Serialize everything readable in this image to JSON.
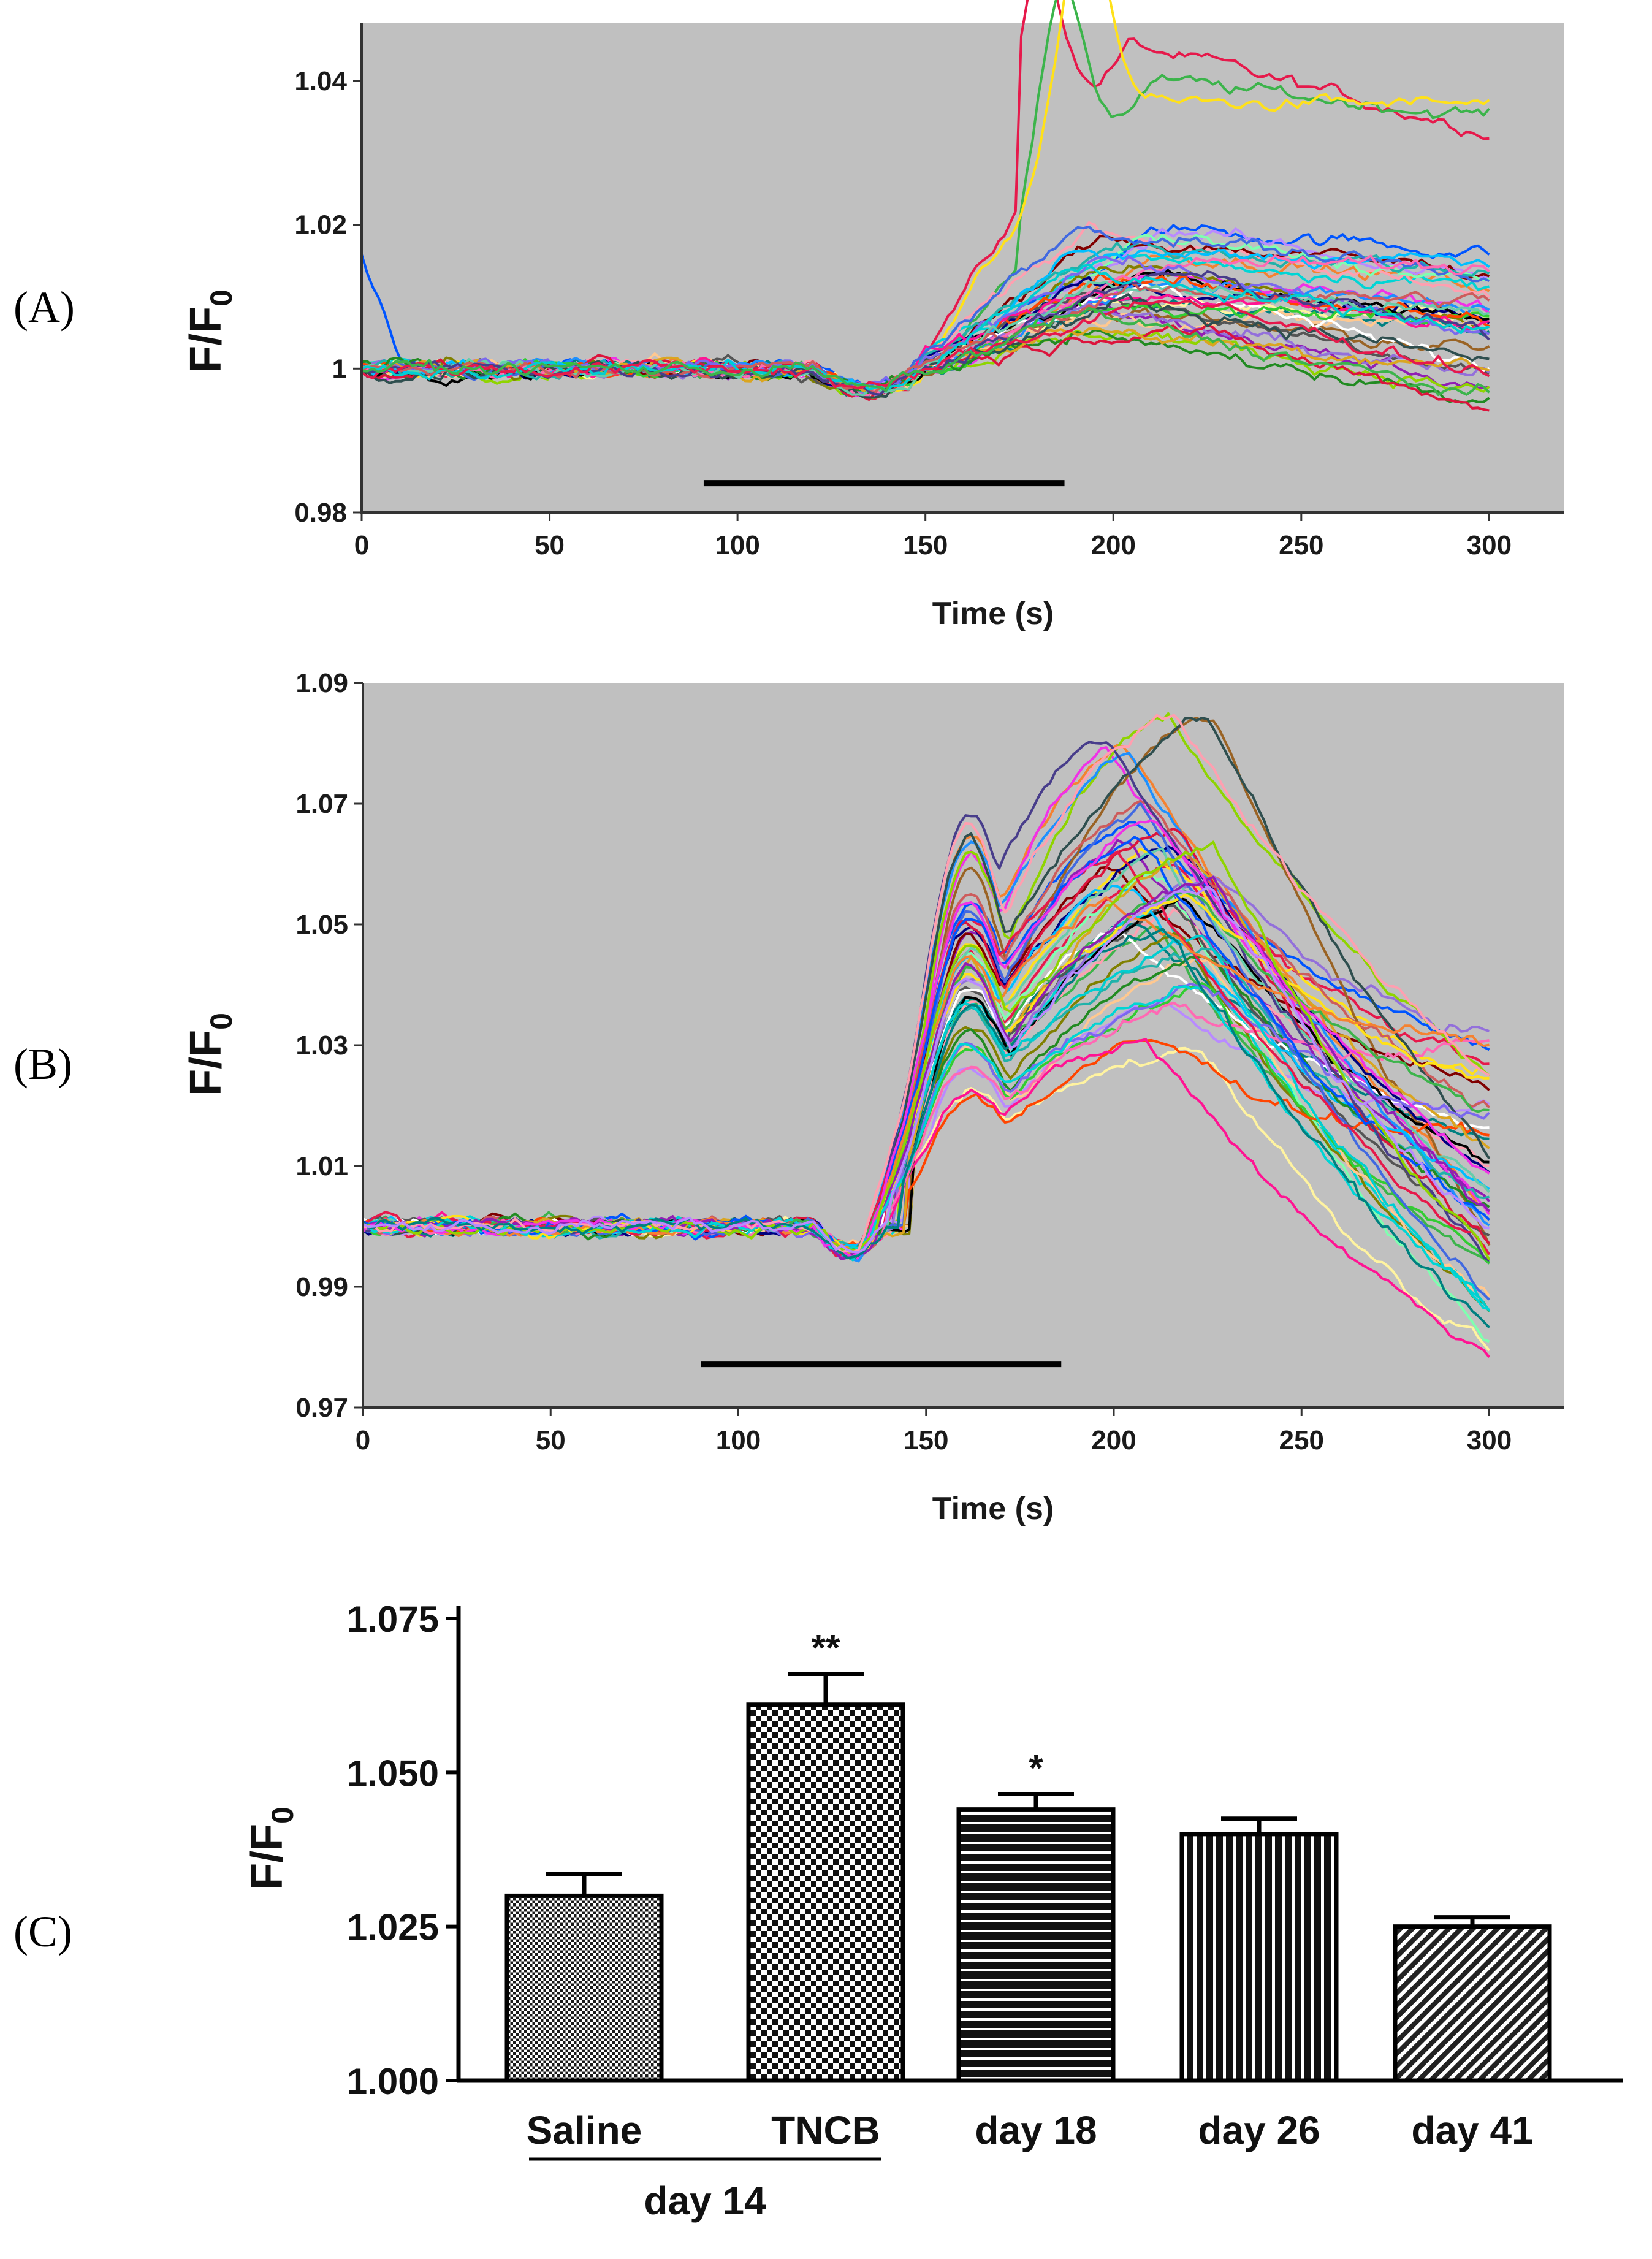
{
  "chart_data": [
    {
      "panel": "(A)",
      "type": "line",
      "xlabel": "Time (s)",
      "ylabel": {
        "main": "F/F",
        "sub": "0"
      },
      "xlim": [
        0,
        320
      ],
      "ylim": [
        0.98,
        1.048
      ],
      "xticks": [
        0,
        50,
        100,
        150,
        200,
        250,
        300
      ],
      "yticks": [
        {
          "value": 0.98,
          "label": "0.98"
        },
        {
          "value": 1.0,
          "label": "1"
        },
        {
          "value": 1.02,
          "label": "1.02"
        },
        {
          "value": 1.04,
          "label": "1.04"
        }
      ],
      "stimulus_bar": [
        91,
        187
      ],
      "n_traces": 42,
      "response_onset_s": 150,
      "mean_peak_time_s": 200,
      "peak_range": [
        1.005,
        1.02
      ],
      "outlier_peaks": [
        1.045,
        1.04,
        1.037
      ],
      "background": "#c0c0c0"
    },
    {
      "panel": "(B)",
      "type": "line",
      "xlabel": "Time (s)",
      "ylabel": {
        "main": "F/F",
        "sub": "0"
      },
      "xlim": [
        0,
        320
      ],
      "ylim": [
        0.97,
        1.09
      ],
      "xticks": [
        0,
        50,
        100,
        150,
        200,
        250,
        300
      ],
      "yticks": [
        {
          "value": 0.97,
          "label": "0.97"
        },
        {
          "value": 0.99,
          "label": "0.99"
        },
        {
          "value": 1.01,
          "label": "1.01"
        },
        {
          "value": 1.03,
          "label": "1.03"
        },
        {
          "value": 1.05,
          "label": "1.05"
        },
        {
          "value": 1.07,
          "label": "1.07"
        },
        {
          "value": 1.09,
          "label": "1.09"
        }
      ],
      "stimulus_bar": [
        90,
        186
      ],
      "n_traces": 52,
      "response_onset_s": 140,
      "mean_peak_time_s": 212,
      "peak_range": [
        1.026,
        1.086
      ],
      "end_range": [
        0.978,
        1.034
      ],
      "background": "#c0c0c0"
    },
    {
      "panel": "(C)",
      "type": "bar",
      "ylabel": {
        "main": "F/F",
        "sub": "0"
      },
      "ylim": [
        1.0,
        1.075
      ],
      "yticks": [
        {
          "value": 1.0,
          "label": "1.000"
        },
        {
          "value": 1.025,
          "label": "1.025"
        },
        {
          "value": 1.05,
          "label": "1.050"
        },
        {
          "value": 1.075,
          "label": "1.075"
        }
      ],
      "categories": [
        "Saline",
        "TNCB",
        "day 18",
        "day 26",
        "day 41"
      ],
      "values": [
        1.03,
        1.061,
        1.044,
        1.04,
        1.025
      ],
      "errors": [
        0.0035,
        0.005,
        0.0025,
        0.0025,
        0.0015
      ],
      "patterns": [
        "fine-dots",
        "checker",
        "hstripes",
        "vstripes",
        "diagonal"
      ],
      "significance": [
        "",
        "**",
        "*",
        "",
        ""
      ],
      "group_label": "day 14",
      "group_members": [
        0,
        1
      ]
    }
  ]
}
